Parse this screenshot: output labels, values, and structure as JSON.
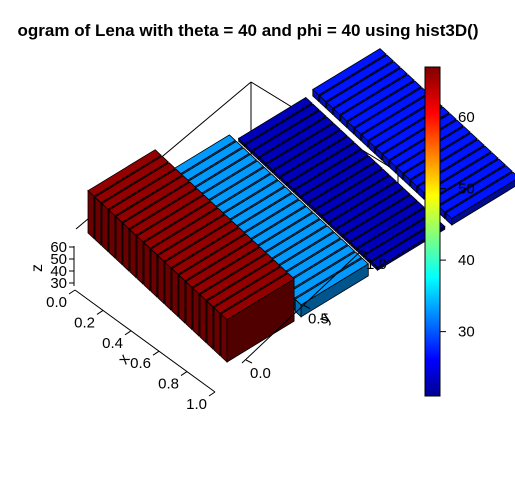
{
  "chart_data": {
    "type": "bar3d",
    "title": "ogram of Lena with theta = 40 and phi = 40 using hist3D()",
    "theta": 40,
    "phi": 40,
    "xlabel": "x",
    "ylabel": "y",
    "zlabel": "z",
    "x_ticks": [
      "0.0",
      "0.2",
      "0.4",
      "0.6",
      "0.8",
      "1.0"
    ],
    "y_ticks": [
      "0.0",
      "0.5",
      "1.0"
    ],
    "z_ticks": [
      "30",
      "40",
      "50",
      "60"
    ],
    "zlim": [
      20,
      67
    ],
    "x_bins": 20,
    "rows": [
      {
        "y": 0.0,
        "value": 66
      },
      {
        "y": 0.33,
        "value": 33
      },
      {
        "y": 0.67,
        "value": 23
      },
      {
        "y": 1.0,
        "value": 27
      }
    ],
    "colorbar": {
      "ticks": [
        "30",
        "40",
        "50",
        "60"
      ],
      "range": [
        21,
        67
      ],
      "palette": [
        "#00008f",
        "#0000ff",
        "#00ffff",
        "#ffff00",
        "#ff0000",
        "#800000"
      ]
    }
  }
}
